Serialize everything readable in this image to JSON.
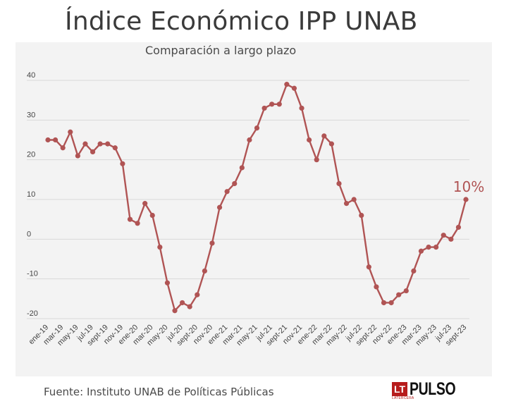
{
  "header": {
    "title": "Índice Económico IPP UNAB",
    "subtitle": "Comparación a largo plazo"
  },
  "footer": {
    "source": "Fuente: Instituto UNAB de Políticas Públicas",
    "logo_badge": "LT",
    "logo_badge_sub": "LATERCERA",
    "logo_word": "PULSO"
  },
  "colors": {
    "line": "#b05454",
    "grid": "#d9d9d9",
    "panel": "#f3f3f3",
    "annotation": "#b05454",
    "tick_text": "#444444"
  },
  "chart_data": {
    "type": "line",
    "title": "Índice Económico IPP UNAB",
    "subtitle": "Comparación a largo plazo",
    "xlabel": "",
    "ylabel": "",
    "ylim": [
      -20,
      40
    ],
    "yticks": [
      -20,
      -10,
      0,
      10,
      20,
      30,
      40
    ],
    "grid": true,
    "legend": "none",
    "x_tick_labels": [
      "ene-19",
      "mar-19",
      "may-19",
      "jul-19",
      "sept-19",
      "nov-19",
      "ene-20",
      "mar-20",
      "may-20",
      "jul-20",
      "sept-20",
      "nov-20",
      "ene-21",
      "mar-21",
      "may-21",
      "jul-21",
      "sept-21",
      "nov-21",
      "ene-22",
      "mar-22",
      "may-22",
      "jul-22",
      "sept-22",
      "nov-22",
      "ene-23",
      "mar-23",
      "may-23",
      "jul-23",
      "sept-23"
    ],
    "x": [
      "ene-19",
      "feb-19",
      "mar-19",
      "abr-19",
      "may-19",
      "jun-19",
      "jul-19",
      "ago-19",
      "sept-19",
      "oct-19",
      "nov-19",
      "dic-19",
      "ene-20",
      "feb-20",
      "mar-20",
      "abr-20",
      "may-20",
      "jun-20",
      "jul-20",
      "ago-20",
      "sept-20",
      "oct-20",
      "nov-20",
      "dic-20",
      "ene-21",
      "feb-21",
      "mar-21",
      "abr-21",
      "may-21",
      "jun-21",
      "jul-21",
      "ago-21",
      "sept-21",
      "oct-21",
      "nov-21",
      "dic-21",
      "ene-22",
      "feb-22",
      "mar-22",
      "abr-22",
      "may-22",
      "jun-22",
      "jul-22",
      "ago-22",
      "sept-22",
      "oct-22",
      "nov-22",
      "dic-22",
      "ene-23",
      "feb-23",
      "mar-23",
      "abr-23",
      "may-23",
      "jun-23",
      "jul-23",
      "ago-23",
      "sept-23"
    ],
    "series": [
      {
        "values": [
          25,
          25,
          23,
          27,
          21,
          24,
          22,
          24,
          24,
          23,
          19,
          5,
          4,
          9,
          6,
          -2,
          -11,
          -18,
          -16,
          -17,
          -14,
          -8,
          -1,
          8,
          12,
          14,
          18,
          25,
          28,
          33,
          34,
          34,
          39,
          38,
          33,
          25,
          20,
          26,
          24,
          14,
          9,
          10,
          6,
          -7,
          -12,
          -16,
          -16,
          -14,
          -13,
          -8,
          -3,
          -2,
          -2,
          1,
          0,
          3,
          10
        ]
      }
    ],
    "annotations": [
      {
        "text": "10%",
        "at": "sept-23",
        "value": 10
      }
    ]
  }
}
